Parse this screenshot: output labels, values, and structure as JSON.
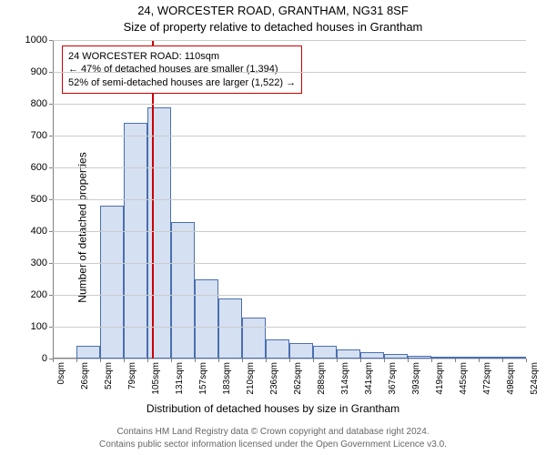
{
  "header": {
    "title_main": "24, WORCESTER ROAD, GRANTHAM, NG31 8SF",
    "title_sub": "Size of property relative to detached houses in Grantham"
  },
  "axes": {
    "ylabel": "Number of detached properties",
    "xlabel": "Distribution of detached houses by size in Grantham"
  },
  "attribution": {
    "line1": "Contains HM Land Registry data © Crown copyright and database right 2024.",
    "line2": "Contains public sector information licensed under the Open Government Licence v3.0."
  },
  "chart": {
    "type": "histogram",
    "background_color": "#ffffff",
    "grid_color": "#cccccc",
    "axis_color": "#808080",
    "ylim": [
      0,
      1000
    ],
    "ytick_step": 100,
    "yticks": [
      0,
      100,
      200,
      300,
      400,
      500,
      600,
      700,
      800,
      900,
      1000
    ],
    "xtick_labels": [
      "0sqm",
      "26sqm",
      "52sqm",
      "79sqm",
      "105sqm",
      "131sqm",
      "157sqm",
      "183sqm",
      "210sqm",
      "236sqm",
      "262sqm",
      "288sqm",
      "314sqm",
      "341sqm",
      "367sqm",
      "393sqm",
      "419sqm",
      "445sqm",
      "472sqm",
      "498sqm",
      "524sqm"
    ],
    "bar_fill": "#d5e0f2",
    "bar_border": "#4a6fb0",
    "bar_values": [
      0,
      40,
      480,
      740,
      790,
      430,
      250,
      190,
      130,
      60,
      50,
      40,
      30,
      20,
      15,
      10,
      5,
      5,
      3,
      2
    ],
    "marker": {
      "x_value_sqm": 110,
      "x_max_sqm": 524,
      "color": "#cc0000"
    },
    "annotation": {
      "line1": "24 WORCESTER ROAD: 110sqm",
      "line2": "← 47% of detached houses are smaller (1,394)",
      "line3": "52% of semi-detached houses are larger (1,522) →",
      "border_color": "#cc0000"
    }
  }
}
